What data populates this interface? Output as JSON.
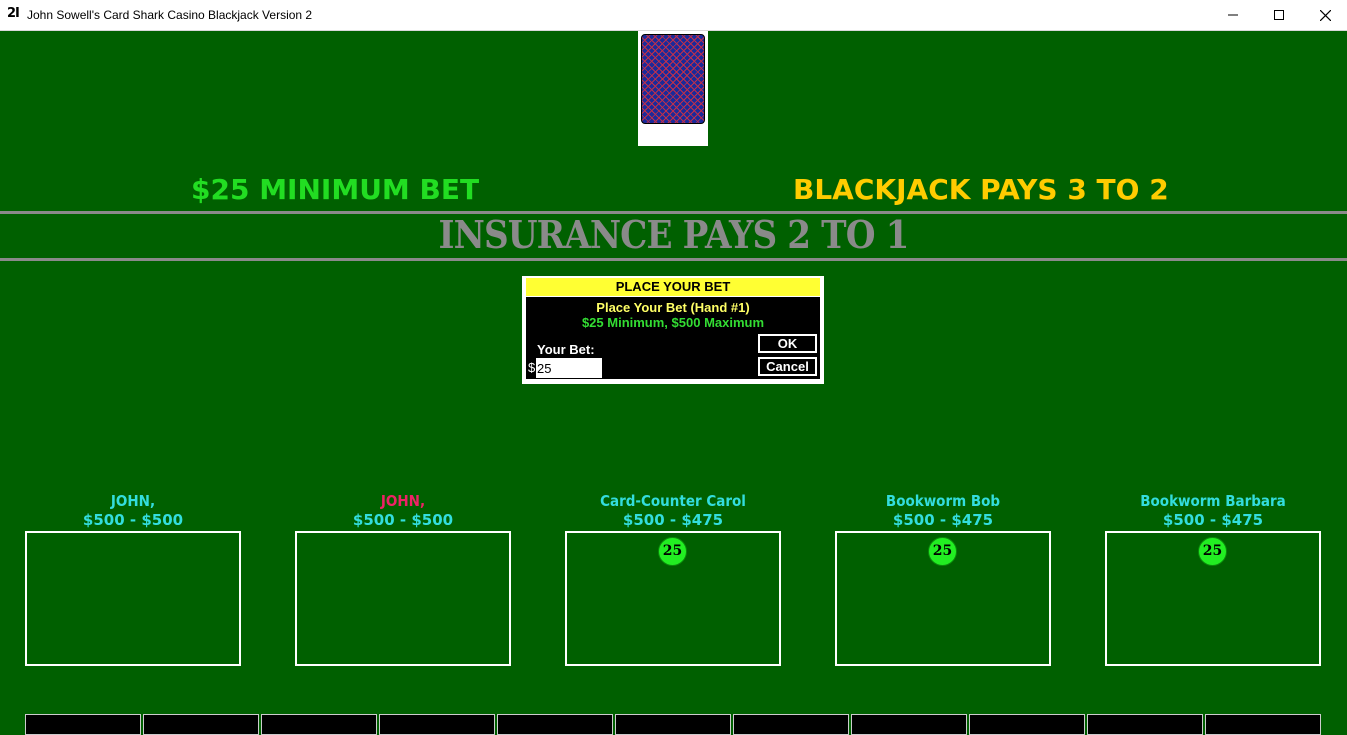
{
  "window": {
    "icon_text": "2I",
    "title": "John Sowell's Card Shark Casino Blackjack Version 2"
  },
  "table": {
    "min_bet": "$25 MINIMUM BET",
    "blackjack_pays": "BLACKJACK PAYS 3 TO 2",
    "insurance": "INSURANCE PAYS 2 TO 1",
    "colors": {
      "felt": "#006000",
      "min_bet": "#22dd22",
      "blackjack": "#ffcc00",
      "insurance": "#8a8a8a"
    }
  },
  "dialog": {
    "title": "PLACE YOUR BET",
    "line1": "Place Your Bet (Hand #1)",
    "line2": "$25 Minimum, $500 Maximum",
    "bet_label": "Your Bet:",
    "currency": "$",
    "bet_value": "25",
    "ok_label": "OK",
    "cancel_label": "Cancel"
  },
  "players": [
    {
      "name": "JOHN,",
      "money": "$500 - $500",
      "chip": null
    },
    {
      "name": "JOHN,",
      "money": "$500 - $500",
      "chip": null
    },
    {
      "name": "Card-Counter Carol",
      "money": "$500 - $475",
      "chip": "25"
    },
    {
      "name": "Bookworm Bob",
      "money": "$500 - $475",
      "chip": "25"
    },
    {
      "name": "Bookworm Barbara",
      "money": "$500 - $475",
      "chip": "25"
    }
  ],
  "icons": {
    "minimize": "minimize-icon",
    "maximize": "maximize-icon",
    "close": "close-icon"
  }
}
